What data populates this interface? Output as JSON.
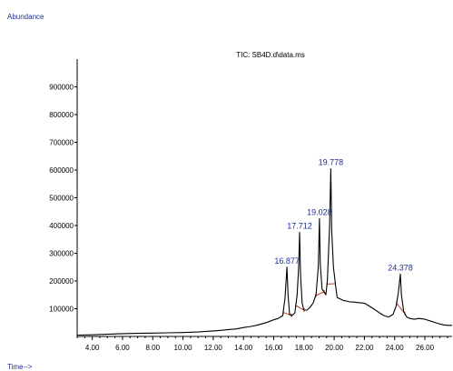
{
  "chart_data": {
    "type": "line",
    "title": "TIC: SB4D.d\\data.ms",
    "ylabel": "Abundance",
    "xlabel": "Time-->",
    "xlim": [
      3.0,
      27.8
    ],
    "ylim": [
      0,
      1000000
    ],
    "x_ticks": [
      4.0,
      6.0,
      8.0,
      10.0,
      12.0,
      14.0,
      16.0,
      18.0,
      20.0,
      22.0,
      24.0,
      26.0
    ],
    "x_tick_labels": [
      "4.00",
      "6.00",
      "8.00",
      "10.00",
      "12.00",
      "14.00",
      "16.00",
      "18.00",
      "20.00",
      "22.00",
      "24.00",
      "26.00"
    ],
    "y_ticks": [
      100000,
      200000,
      300000,
      400000,
      500000,
      600000,
      700000,
      800000,
      900000
    ],
    "y_tick_labels": [
      "100000",
      "200000",
      "300000",
      "400000",
      "500000",
      "600000",
      "700000",
      "800000",
      "900000"
    ],
    "grid": false,
    "colors": {
      "trace": "#000000",
      "peak_label": "#1f2f8f",
      "integration": "#c0392b"
    },
    "peaks": [
      {
        "label": "16.877",
        "rt": 16.877,
        "height": 250000
      },
      {
        "label": "17.712",
        "rt": 17.712,
        "height": 375000
      },
      {
        "label": "19.028",
        "rt": 19.028,
        "height": 425000
      },
      {
        "label": "19.778",
        "rt": 19.778,
        "height": 605000
      },
      {
        "label": "24.378",
        "rt": 24.378,
        "height": 225000
      }
    ],
    "series": [
      {
        "x": [
          3.0,
          4.0,
          5.0,
          6.0,
          7.0,
          8.0,
          9.0,
          10.0,
          11.0,
          12.0,
          12.5,
          13.0,
          13.5,
          14.0,
          14.5,
          15.0,
          15.5,
          16.0,
          16.3,
          16.6,
          16.75,
          16.877,
          16.95,
          17.05,
          17.2,
          17.4,
          17.55,
          17.65,
          17.712,
          17.78,
          17.88,
          18.0,
          18.2,
          18.4,
          18.6,
          18.8,
          18.95,
          19.028,
          19.08,
          19.2,
          19.35,
          19.45,
          19.55,
          19.7,
          19.778,
          19.84,
          19.95,
          20.1,
          20.2,
          20.4,
          20.6,
          20.8,
          21.0,
          21.3,
          21.6,
          22.0,
          22.3,
          22.6,
          23.0,
          23.3,
          23.6,
          23.9,
          24.1,
          24.25,
          24.378,
          24.45,
          24.6,
          24.8,
          25.0,
          25.3,
          25.6,
          26.0,
          26.4,
          26.8,
          27.2,
          27.5,
          27.8
        ],
        "y": [
          5000,
          6000,
          8000,
          10000,
          11000,
          12000,
          13000,
          14000,
          16000,
          20000,
          22000,
          25000,
          27000,
          32000,
          36000,
          42000,
          50000,
          60000,
          65000,
          75000,
          140000,
          250000,
          150000,
          80000,
          75000,
          85000,
          150000,
          250000,
          375000,
          220000,
          120000,
          95000,
          95000,
          105000,
          120000,
          150000,
          250000,
          425000,
          260000,
          170000,
          160000,
          150000,
          200000,
          400000,
          605000,
          380000,
          250000,
          180000,
          140000,
          135000,
          130000,
          128000,
          125000,
          124000,
          122000,
          120000,
          110000,
          100000,
          85000,
          75000,
          70000,
          80000,
          110000,
          160000,
          225000,
          150000,
          90000,
          70000,
          65000,
          62000,
          65000,
          62000,
          55000,
          48000,
          42000,
          40000,
          40000
        ]
      }
    ],
    "integration_marks": [
      16.877,
      17.712,
      19.028,
      19.778,
      24.378
    ]
  }
}
